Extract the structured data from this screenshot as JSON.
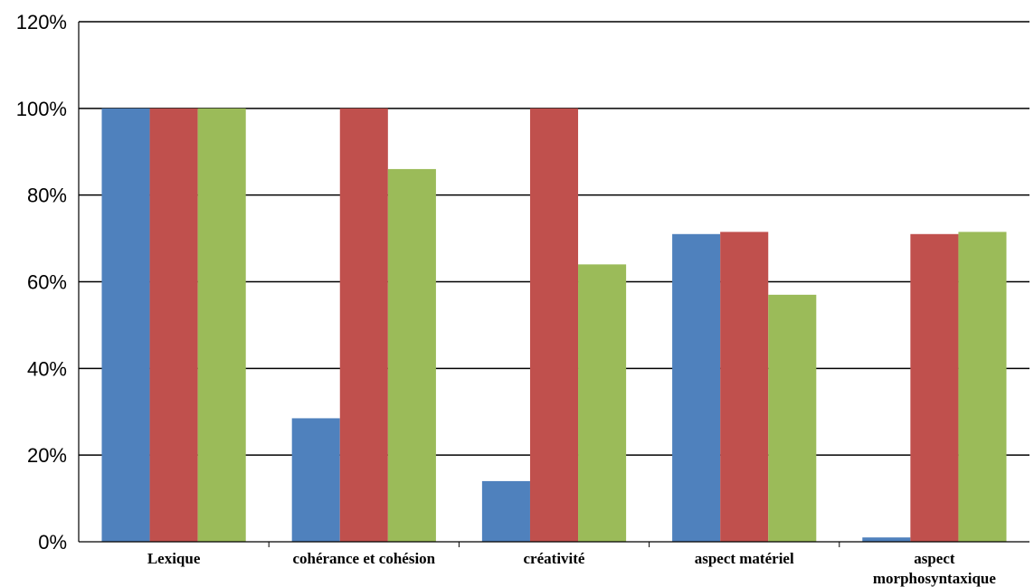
{
  "chart_data": {
    "type": "bar",
    "title": "",
    "xlabel": "",
    "ylabel": "",
    "categories": [
      [
        "Lexique"
      ],
      [
        "cohérance et cohésion"
      ],
      [
        "créativité"
      ],
      [
        "aspect matériel"
      ],
      [
        "aspect",
        "morphosyntaxique"
      ]
    ],
    "series": [
      {
        "color": "#4f81bd",
        "values": [
          100,
          28.5,
          14,
          71,
          1
        ]
      },
      {
        "color": "#c0504d",
        "values": [
          100,
          100,
          100,
          71.5,
          71
        ]
      },
      {
        "color": "#9bbb59",
        "values": [
          100,
          86,
          64,
          57,
          71.5
        ]
      }
    ],
    "ylim": [
      0,
      120
    ],
    "yticks": [
      0,
      20,
      40,
      60,
      80,
      100,
      120
    ],
    "ytick_labels": [
      "0%",
      "20%",
      "40%",
      "60%",
      "80%",
      "100%",
      "120%"
    ],
    "grid": true,
    "legend": "none"
  }
}
